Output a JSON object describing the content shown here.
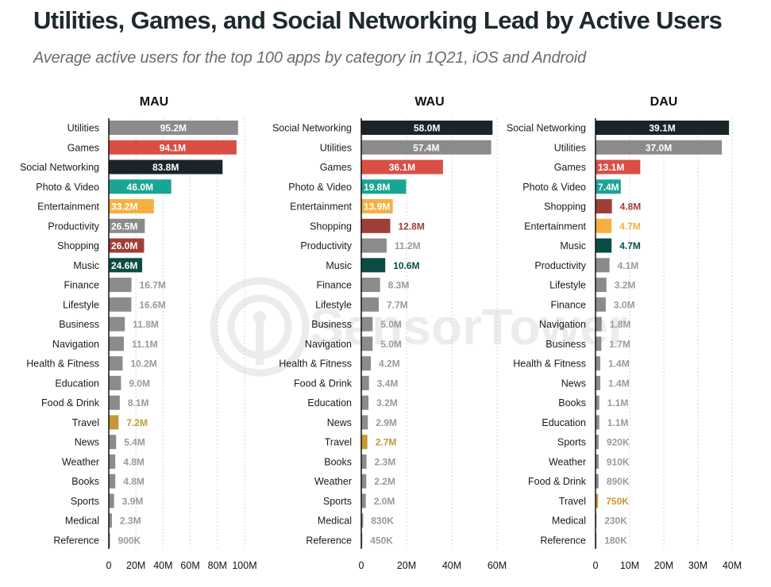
{
  "header": {
    "title": "Utilities, Games, and Social Networking Lead by Active Users",
    "subtitle": "Average active users for the top 100 apps by category in 1Q21, iOS and Android"
  },
  "watermark": {
    "text": "SensorTower",
    "icon": "sensor-tower-logo-icon"
  },
  "colors": {
    "gray": "#8b8b8b",
    "red": "#d94f45",
    "dark": "#1b2529",
    "teal": "#19a594",
    "yellow": "#f5b041",
    "brick": "#9e3f37",
    "darkgreen": "#0b4d45",
    "gold": "#c49a36",
    "outside_label_gray": "#9a9a9a"
  },
  "chart_data": [
    {
      "type": "bar",
      "orientation": "horizontal",
      "title": "MAU",
      "xlim": [
        0,
        100
      ],
      "unit": "M",
      "xticks": [
        "0",
        "20M",
        "40M",
        "60M",
        "80M",
        "100M"
      ],
      "xtick_values": [
        0,
        20,
        40,
        60,
        80,
        100
      ],
      "grid": true,
      "categories": [
        "Utilities",
        "Games",
        "Social Networking",
        "Photo & Video",
        "Entertainment",
        "Productivity",
        "Shopping",
        "Music",
        "Finance",
        "Lifestyle",
        "Business",
        "Navigation",
        "Health & Fitness",
        "Education",
        "Food & Drink",
        "Travel",
        "News",
        "Weather",
        "Books",
        "Sports",
        "Medical",
        "Reference"
      ],
      "values": [
        95.2,
        94.1,
        83.8,
        46.0,
        33.2,
        26.5,
        26.0,
        24.6,
        16.7,
        16.6,
        11.8,
        11.1,
        10.2,
        9.0,
        8.1,
        7.2,
        5.4,
        4.8,
        4.8,
        3.9,
        2.3,
        0.9
      ],
      "labels": [
        "95.2M",
        "94.1M",
        "83.8M",
        "46.0M",
        "33.2M",
        "26.5M",
        "26.0M",
        "24.6M",
        "16.7M",
        "16.6M",
        "11.8M",
        "11.1M",
        "10.2M",
        "9.0M",
        "8.1M",
        "7.2M",
        "5.4M",
        "4.8M",
        "4.8M",
        "3.9M",
        "2.3M",
        "900K"
      ],
      "bar_colors": [
        "gray",
        "red",
        "dark",
        "teal",
        "yellow",
        "gray",
        "brick",
        "darkgreen",
        "gray",
        "gray",
        "gray",
        "gray",
        "gray",
        "gray",
        "gray",
        "gold",
        "gray",
        "gray",
        "gray",
        "gray",
        "gray",
        "gray"
      ],
      "label_inside": [
        true,
        true,
        true,
        true,
        true,
        true,
        true,
        true,
        false,
        false,
        false,
        false,
        false,
        false,
        false,
        false,
        false,
        false,
        false,
        false,
        false,
        false
      ]
    },
    {
      "type": "bar",
      "orientation": "horizontal",
      "title": "WAU",
      "xlim": [
        0,
        60
      ],
      "unit": "M",
      "xticks": [
        "0",
        "20M",
        "40M",
        "60M"
      ],
      "xtick_values": [
        0,
        20,
        40,
        60
      ],
      "grid": true,
      "categories": [
        "Social Networking",
        "Utilities",
        "Games",
        "Photo & Video",
        "Entertainment",
        "Shopping",
        "Productivity",
        "Music",
        "Finance",
        "Lifestyle",
        "Business",
        "Navigation",
        "Health & Fitness",
        "Food & Drink",
        "Education",
        "News",
        "Travel",
        "Books",
        "Weather",
        "Sports",
        "Medical",
        "Reference"
      ],
      "values": [
        58.0,
        57.4,
        36.1,
        19.8,
        13.9,
        12.8,
        11.2,
        10.6,
        8.3,
        7.7,
        5.0,
        5.0,
        4.2,
        3.4,
        3.2,
        2.9,
        2.7,
        2.3,
        2.2,
        2.0,
        0.83,
        0.45
      ],
      "labels": [
        "58.0M",
        "57.4M",
        "36.1M",
        "19.8M",
        "13.9M",
        "12.8M",
        "11.2M",
        "10.6M",
        "8.3M",
        "7.7M",
        "5.0M",
        "5.0M",
        "4.2M",
        "3.4M",
        "3.2M",
        "2.9M",
        "2.7M",
        "2.3M",
        "2.2M",
        "2.0M",
        "830K",
        "450K"
      ],
      "bar_colors": [
        "dark",
        "gray",
        "red",
        "teal",
        "yellow",
        "brick",
        "gray",
        "darkgreen",
        "gray",
        "gray",
        "gray",
        "gray",
        "gray",
        "gray",
        "gray",
        "gray",
        "gold",
        "gray",
        "gray",
        "gray",
        "gray",
        "gray"
      ],
      "label_inside": [
        true,
        true,
        true,
        true,
        true,
        false,
        false,
        false,
        false,
        false,
        false,
        false,
        false,
        false,
        false,
        false,
        false,
        false,
        false,
        false,
        false,
        false
      ]
    },
    {
      "type": "bar",
      "orientation": "horizontal",
      "title": "DAU",
      "xlim": [
        0,
        40
      ],
      "unit": "M",
      "xticks": [
        "0",
        "10M",
        "20M",
        "30M",
        "40M"
      ],
      "xtick_values": [
        0,
        10,
        20,
        30,
        40
      ],
      "grid": true,
      "categories": [
        "Social Networking",
        "Utilities",
        "Games",
        "Photo & Video",
        "Shopping",
        "Entertainment",
        "Music",
        "Productivity",
        "Lifestyle",
        "Finance",
        "Navigation",
        "Business",
        "Health & Fitness",
        "News",
        "Books",
        "Education",
        "Sports",
        "Weather",
        "Food & Drink",
        "Travel",
        "Medical",
        "Reference"
      ],
      "values": [
        39.1,
        37.0,
        13.1,
        7.4,
        4.8,
        4.7,
        4.7,
        4.1,
        3.2,
        3.0,
        1.8,
        1.7,
        1.4,
        1.4,
        1.1,
        1.1,
        0.92,
        0.91,
        0.89,
        0.75,
        0.23,
        0.18
      ],
      "labels": [
        "39.1M",
        "37.0M",
        "13.1M",
        "7.4M",
        "4.8M",
        "4.7M",
        "4.7M",
        "4.1M",
        "3.2M",
        "3.0M",
        "1.8M",
        "1.7M",
        "1.4M",
        "1.4M",
        "1.1M",
        "1.1M",
        "920K",
        "910K",
        "890K",
        "750K",
        "230K",
        "180K"
      ],
      "bar_colors": [
        "dark",
        "gray",
        "red",
        "teal",
        "brick",
        "yellow",
        "darkgreen",
        "gray",
        "gray",
        "gray",
        "gray",
        "gray",
        "gray",
        "gray",
        "gray",
        "gray",
        "gray",
        "gray",
        "gray",
        "gold",
        "gray",
        "gray"
      ],
      "label_inside": [
        true,
        true,
        true,
        true,
        false,
        false,
        false,
        false,
        false,
        false,
        false,
        false,
        false,
        false,
        false,
        false,
        false,
        false,
        false,
        false,
        false,
        false
      ]
    }
  ]
}
